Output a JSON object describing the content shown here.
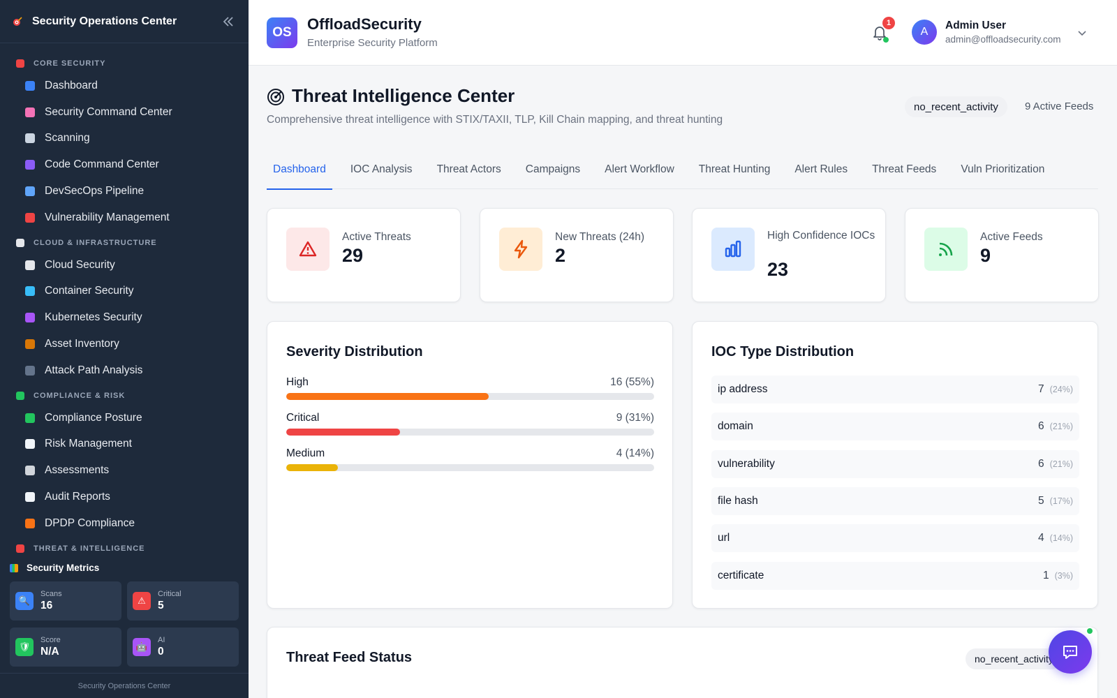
{
  "sidebar": {
    "title": "Security Operations Center",
    "sections": [
      {
        "label": "CORE SECURITY",
        "icon": "shield-icon",
        "color": "#ef4444",
        "items": [
          {
            "label": "Dashboard",
            "icon": "bar-chart-icon",
            "color": "#3b82f6"
          },
          {
            "label": "Security Command Center",
            "icon": "brain-icon",
            "color": "#f472b6"
          },
          {
            "label": "Scanning",
            "icon": "magnifier-icon",
            "color": "#cbd5e1"
          },
          {
            "label": "Code Command Center",
            "icon": "dna-icon",
            "color": "#8b5cf6"
          },
          {
            "label": "DevSecOps Pipeline",
            "icon": "cycle-icon",
            "color": "#60a5fa"
          },
          {
            "label": "Vulnerability Management",
            "icon": "shield-icon",
            "color": "#ef4444"
          }
        ]
      },
      {
        "label": "CLOUD & INFRASTRUCTURE",
        "icon": "cloud-icon",
        "color": "#e5e7eb",
        "items": [
          {
            "label": "Cloud Security",
            "icon": "cloud-icon",
            "color": "#e5e7eb"
          },
          {
            "label": "Container Security",
            "icon": "whale-icon",
            "color": "#38bdf8"
          },
          {
            "label": "Kubernetes Security",
            "icon": "atom-icon",
            "color": "#a855f7"
          },
          {
            "label": "Asset Inventory",
            "icon": "package-icon",
            "color": "#d97706"
          },
          {
            "label": "Attack Path Analysis",
            "icon": "web-icon",
            "color": "#64748b"
          }
        ]
      },
      {
        "label": "COMPLIANCE & RISK",
        "icon": "check-icon",
        "color": "#22c55e",
        "items": [
          {
            "label": "Compliance Posture",
            "icon": "check-icon",
            "color": "#22c55e"
          },
          {
            "label": "Risk Management",
            "icon": "trend-icon",
            "color": "#f1f5f9"
          },
          {
            "label": "Assessments",
            "icon": "clipboard-icon",
            "color": "#d1d5db"
          },
          {
            "label": "Audit Reports",
            "icon": "document-icon",
            "color": "#f1f5f9"
          },
          {
            "label": "DPDP Compliance",
            "icon": "flag-india-icon",
            "color": "#f97316"
          }
        ]
      },
      {
        "label": "THREAT & INTELLIGENCE",
        "icon": "target-icon",
        "color": "#ef4444",
        "items": []
      }
    ],
    "metrics_title": "Security Metrics",
    "metrics": [
      {
        "label": "Scans",
        "value": "16",
        "icon": "magnifier-icon",
        "color": "#3b82f6",
        "glyph": "🔍"
      },
      {
        "label": "Critical",
        "value": "5",
        "icon": "warning-icon",
        "color": "#ef4444",
        "glyph": "⚠"
      },
      {
        "label": "Score",
        "value": "N/A",
        "icon": "shield-icon",
        "color": "#22c55e",
        "glyph": "🛡"
      },
      {
        "label": "AI",
        "value": "0",
        "icon": "robot-icon",
        "color": "#a855f7",
        "glyph": "🤖"
      }
    ],
    "footer": "Security Operations Center"
  },
  "header": {
    "logo_text": "OS",
    "brand": "OffloadSecurity",
    "subtitle": "Enterprise Security Platform",
    "notifications": "1",
    "avatar_initial": "A",
    "user_name": "Admin User",
    "user_email": "admin@offloadsecurity.com"
  },
  "page": {
    "title": "Threat Intelligence Center",
    "subtitle": "Comprehensive threat intelligence with STIX/TAXII, TLP, Kill Chain mapping, and threat hunting",
    "status": "no_recent_activity",
    "feeds_count": "9 Active Feeds"
  },
  "tabs": [
    {
      "label": "Dashboard",
      "active": true
    },
    {
      "label": "IOC Analysis"
    },
    {
      "label": "Threat Actors"
    },
    {
      "label": "Campaigns"
    },
    {
      "label": "Alert Workflow"
    },
    {
      "label": "Threat Hunting"
    },
    {
      "label": "Alert Rules"
    },
    {
      "label": "Threat Feeds"
    },
    {
      "label": "Vuln Prioritization"
    }
  ],
  "stats": [
    {
      "label": "Active Threats",
      "value": "29",
      "icon": "warning-icon",
      "color": "#dc2626",
      "bg": "#fde8e8"
    },
    {
      "label": "New Threats (24h)",
      "value": "2",
      "icon": "lightning-icon",
      "color": "#ea580c",
      "bg": "#ffedd5"
    },
    {
      "label": "High Confidence IOCs",
      "value": "23",
      "icon": "bar-chart-icon",
      "color": "#2563eb",
      "bg": "#dbeafe"
    },
    {
      "label": "Active Feeds",
      "value": "9",
      "icon": "rss-icon",
      "color": "#16a34a",
      "bg": "#dcfce7"
    }
  ],
  "severity": {
    "title": "Severity Distribution",
    "rows": [
      {
        "name": "High",
        "value": "16 (55%)",
        "fraction": 0.55,
        "color": "#f97316"
      },
      {
        "name": "Critical",
        "value": "9 (31%)",
        "fraction": 0.31,
        "color": "#ef4444"
      },
      {
        "name": "Medium",
        "value": "4 (14%)",
        "fraction": 0.14,
        "color": "#eab308"
      }
    ]
  },
  "ioc_types": {
    "title": "IOC Type Distribution",
    "rows": [
      {
        "name": "ip address",
        "count": "7",
        "pct": "(24%)"
      },
      {
        "name": "domain",
        "count": "6",
        "pct": "(21%)"
      },
      {
        "name": "vulnerability",
        "count": "6",
        "pct": "(21%)"
      },
      {
        "name": "file hash",
        "count": "5",
        "pct": "(17%)"
      },
      {
        "name": "url",
        "count": "4",
        "pct": "(14%)"
      },
      {
        "name": "certificate",
        "count": "1",
        "pct": "(3%)"
      }
    ]
  },
  "feed_status": {
    "title": "Threat Feed Status",
    "status": "no_recent_activity"
  }
}
